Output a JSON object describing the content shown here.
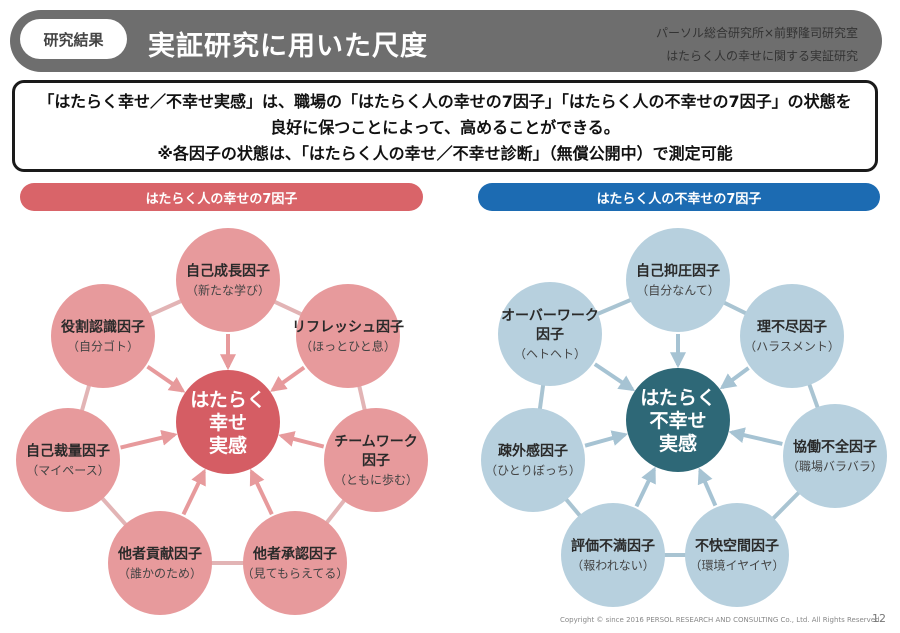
{
  "header": {
    "badge": "研究結果",
    "title": "実証研究に用いた尺度",
    "org_line1": "パーソル総合研究所×前野隆司研究室",
    "org_line2": "はたらく人の幸せに関する実証研究"
  },
  "message": {
    "line1": "「はたらく幸せ／不幸せ実感」は、職場の「はたらく人の幸せの7因子」「はたらく人の不幸せの7因子」の状態を",
    "line2": "良好に保つことによって、高めることができる。",
    "line3": "※各因子の状態は、「はたらく人の幸せ／不幸せ診断」（無償公開中）で測定可能"
  },
  "left_panel": {
    "title": "はたらく人の幸せの7因子",
    "center": [
      "はたらく",
      "幸せ",
      "実感"
    ],
    "factors": [
      {
        "name": [
          "自己成長因子"
        ],
        "sub": "（新たな学び）"
      },
      {
        "name": [
          "リフレッシュ因子"
        ],
        "sub": "（ほっとひと息）"
      },
      {
        "name": [
          "チームワーク",
          "因子"
        ],
        "sub": "（ともに歩む）"
      },
      {
        "name": [
          "他者承認因子"
        ],
        "sub": "（見てもらえてる）"
      },
      {
        "name": [
          "他者貢献因子"
        ],
        "sub": "（誰かのため）"
      },
      {
        "name": [
          "自己裁量因子"
        ],
        "sub": "（マイペース）"
      },
      {
        "name": [
          "役割認識因子"
        ],
        "sub": "（自分ゴト）"
      }
    ],
    "colors": {
      "circle": "#e79a9c",
      "center": "#d55d64",
      "line": "#e2b4b5",
      "arrow": "#e79a9c"
    }
  },
  "right_panel": {
    "title": "はたらく人の不幸せの7因子",
    "center": [
      "はたらく",
      "不幸せ",
      "実感"
    ],
    "factors": [
      {
        "name": [
          "自己抑圧因子"
        ],
        "sub": "（自分なんて）"
      },
      {
        "name": [
          "理不尽因子"
        ],
        "sub": "（ハラスメント）"
      },
      {
        "name": [
          "協働不全因子"
        ],
        "sub": "（職場バラバラ）"
      },
      {
        "name": [
          "不快空間因子"
        ],
        "sub": "（環境イヤイヤ）"
      },
      {
        "name": [
          "評価不満因子"
        ],
        "sub": "（報われない）"
      },
      {
        "name": [
          "疎外感因子"
        ],
        "sub": "（ひとりぼっち）"
      },
      {
        "name": [
          "オーバーワーク",
          "因子"
        ],
        "sub": "（ヘトヘト）"
      }
    ],
    "colors": {
      "circle": "#b7d0de",
      "center": "#2e6877",
      "line": "#a9c4d2",
      "arrow": "#a6c3d3"
    }
  },
  "footer": {
    "copyright": "Copyright © since 2016  PERSOL  RESEARCH AND CONSULTING Co., Ltd. All Rights Reserved.",
    "page": "12"
  }
}
